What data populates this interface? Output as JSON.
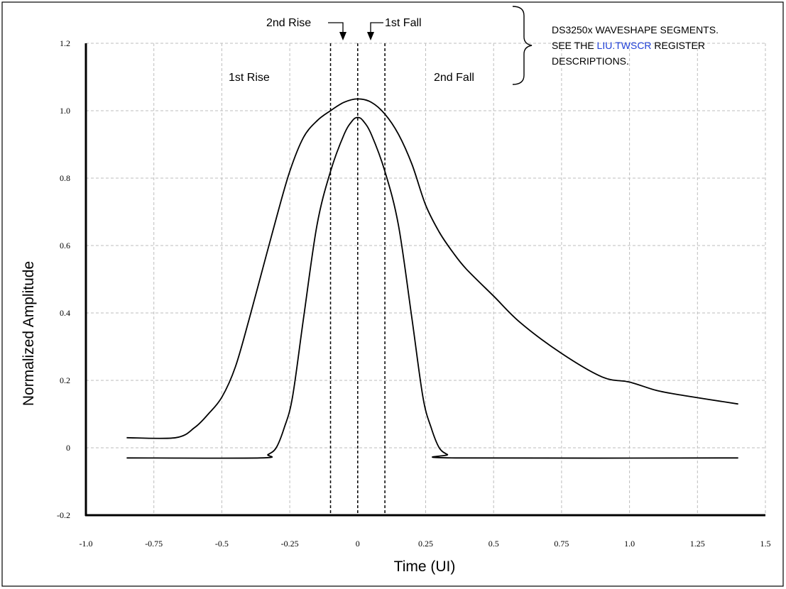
{
  "chart_data": {
    "type": "line",
    "title": "",
    "xlabel": "Time (UI)",
    "ylabel": "Normalized Amplitude",
    "xlim": [
      -1.0,
      1.5
    ],
    "ylim": [
      -0.2,
      1.2
    ],
    "grid": true,
    "x_ticks": [
      -1.0,
      -0.75,
      -0.5,
      -0.25,
      0,
      0.25,
      0.5,
      0.75,
      1.0,
      1.25,
      1.5
    ],
    "x_tick_labels": [
      "-1.0",
      "-0.75",
      "-0.5",
      "-0.25",
      "0",
      "0.25",
      "0.5",
      "0.75",
      "1.0",
      "1.25",
      "1.5"
    ],
    "y_ticks": [
      -0.2,
      0,
      0.2,
      0.4,
      0.6,
      0.8,
      1.0,
      1.2
    ],
    "y_tick_labels": [
      "-0.2",
      "0",
      "0.2",
      "0.4",
      "0.6",
      "0.8",
      "1.0",
      "1.2"
    ],
    "series": [
      {
        "x": [
          -0.85,
          -0.67,
          -0.6,
          -0.55,
          -0.5,
          -0.45,
          -0.4,
          -0.35,
          -0.3,
          -0.25,
          -0.2,
          -0.15,
          -0.1,
          -0.05,
          0,
          0.05,
          0.1,
          0.15,
          0.2,
          0.25,
          0.3,
          0.35,
          0.4,
          0.5,
          0.6,
          0.75,
          0.9,
          1.0,
          1.1,
          1.2,
          1.4
        ],
        "values": [
          0.03,
          0.03,
          0.06,
          0.1,
          0.15,
          0.24,
          0.38,
          0.53,
          0.68,
          0.82,
          0.92,
          0.97,
          1.0,
          1.025,
          1.035,
          1.025,
          0.99,
          0.93,
          0.84,
          0.72,
          0.64,
          0.58,
          0.53,
          0.45,
          0.37,
          0.28,
          0.21,
          0.195,
          0.17,
          0.155,
          0.13
        ]
      },
      {
        "x": [
          -0.85,
          -0.36,
          -0.33,
          -0.3,
          -0.27,
          -0.24,
          -0.2,
          -0.15,
          -0.1,
          -0.05,
          -0.02,
          0,
          0.02,
          0.05,
          0.1,
          0.15,
          0.2,
          0.24,
          0.27,
          0.3,
          0.33,
          0.36,
          1.4
        ],
        "values": [
          -0.03,
          -0.03,
          -0.02,
          0,
          0.06,
          0.15,
          0.38,
          0.66,
          0.82,
          0.93,
          0.97,
          0.98,
          0.97,
          0.93,
          0.82,
          0.66,
          0.38,
          0.15,
          0.06,
          0,
          -0.02,
          -0.03,
          -0.03
        ]
      }
    ],
    "segment_boundaries": [
      -0.1,
      0,
      0.1
    ],
    "segment_labels": {
      "rise1": "1st Rise",
      "rise2": "2nd Rise",
      "fall1": "1st Fall",
      "fall2": "2nd Fall"
    },
    "annotation": {
      "line1": "DS3250x WAVESHAPE SEGMENTS.",
      "line2_prefix": "SEE THE ",
      "line2_link": "LIU.TWSCR",
      "line2_suffix": " REGISTER",
      "line3": "DESCRIPTIONS.",
      "link_color": "#1f3fd6"
    }
  }
}
